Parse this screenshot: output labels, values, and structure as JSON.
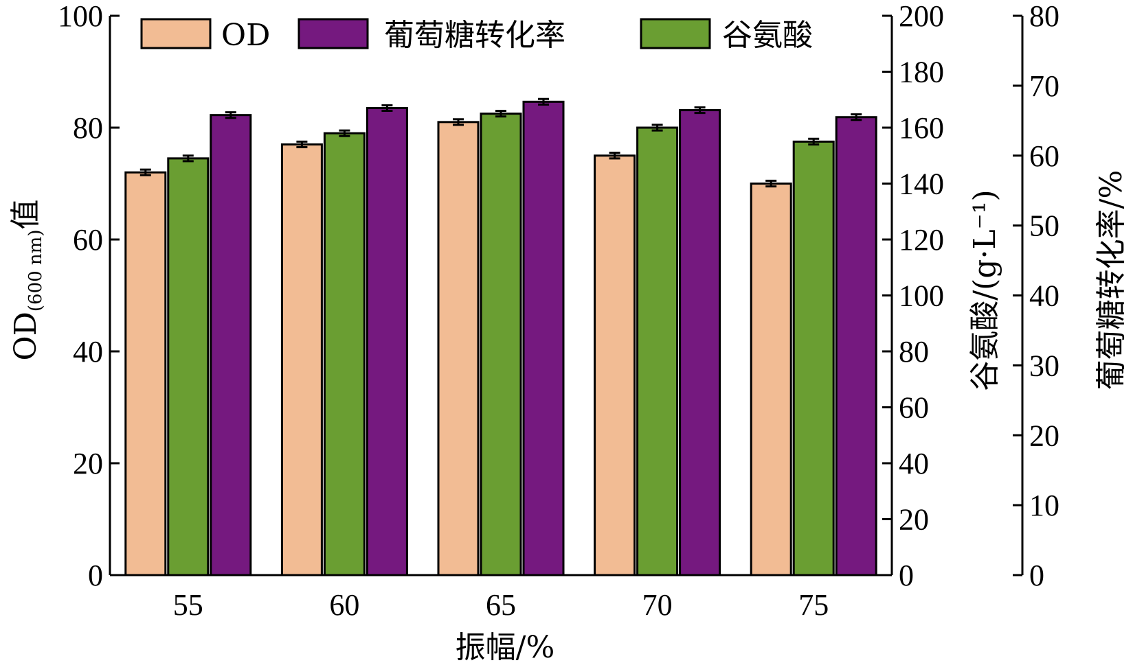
{
  "chart_data": {
    "type": "bar",
    "title": "",
    "xlabel": "振幅/%",
    "categories": [
      "55",
      "60",
      "65",
      "70",
      "75"
    ],
    "axes": {
      "left": {
        "label_main": "OD",
        "label_sub": "(600 nm)",
        "label_tail": "值",
        "ylim": [
          0,
          100
        ],
        "ticks": [
          "0",
          "20",
          "40",
          "60",
          "80",
          "100"
        ]
      },
      "right1": {
        "label": "谷氨酸/(g·L⁻¹)",
        "ylim": [
          0,
          200
        ],
        "ticks": [
          "0",
          "20",
          "40",
          "60",
          "80",
          "100",
          "120",
          "140",
          "160",
          "180",
          "200"
        ]
      },
      "right2": {
        "label": "葡萄糖转化率/%",
        "ylim": [
          0,
          80
        ],
        "ticks": [
          "0",
          "10",
          "20",
          "30",
          "40",
          "50",
          "60",
          "70",
          "80"
        ]
      }
    },
    "series": [
      {
        "name": "OD",
        "axis": "left",
        "color": "#F2BC94",
        "values": [
          72.0,
          77.0,
          81.0,
          75.0,
          70.0
        ],
        "error": [
          0.5,
          0.5,
          0.5,
          0.5,
          0.5
        ]
      },
      {
        "name": "谷氨酸",
        "axis": "right1",
        "color": "#6A9E32",
        "values": [
          149,
          158,
          165,
          160,
          155
        ],
        "error": [
          1,
          1,
          1,
          1,
          1
        ]
      },
      {
        "name": "葡萄糖转化率",
        "axis": "right2",
        "color": "#75197F",
        "values": [
          65.8,
          66.8,
          67.7,
          66.5,
          65.5
        ],
        "error": [
          0.4,
          0.4,
          0.4,
          0.4,
          0.4
        ]
      }
    ],
    "legend": {
      "placement": "top",
      "order": [
        "OD",
        "葡萄糖转化率",
        "谷氨酸"
      ]
    },
    "grid": false
  }
}
